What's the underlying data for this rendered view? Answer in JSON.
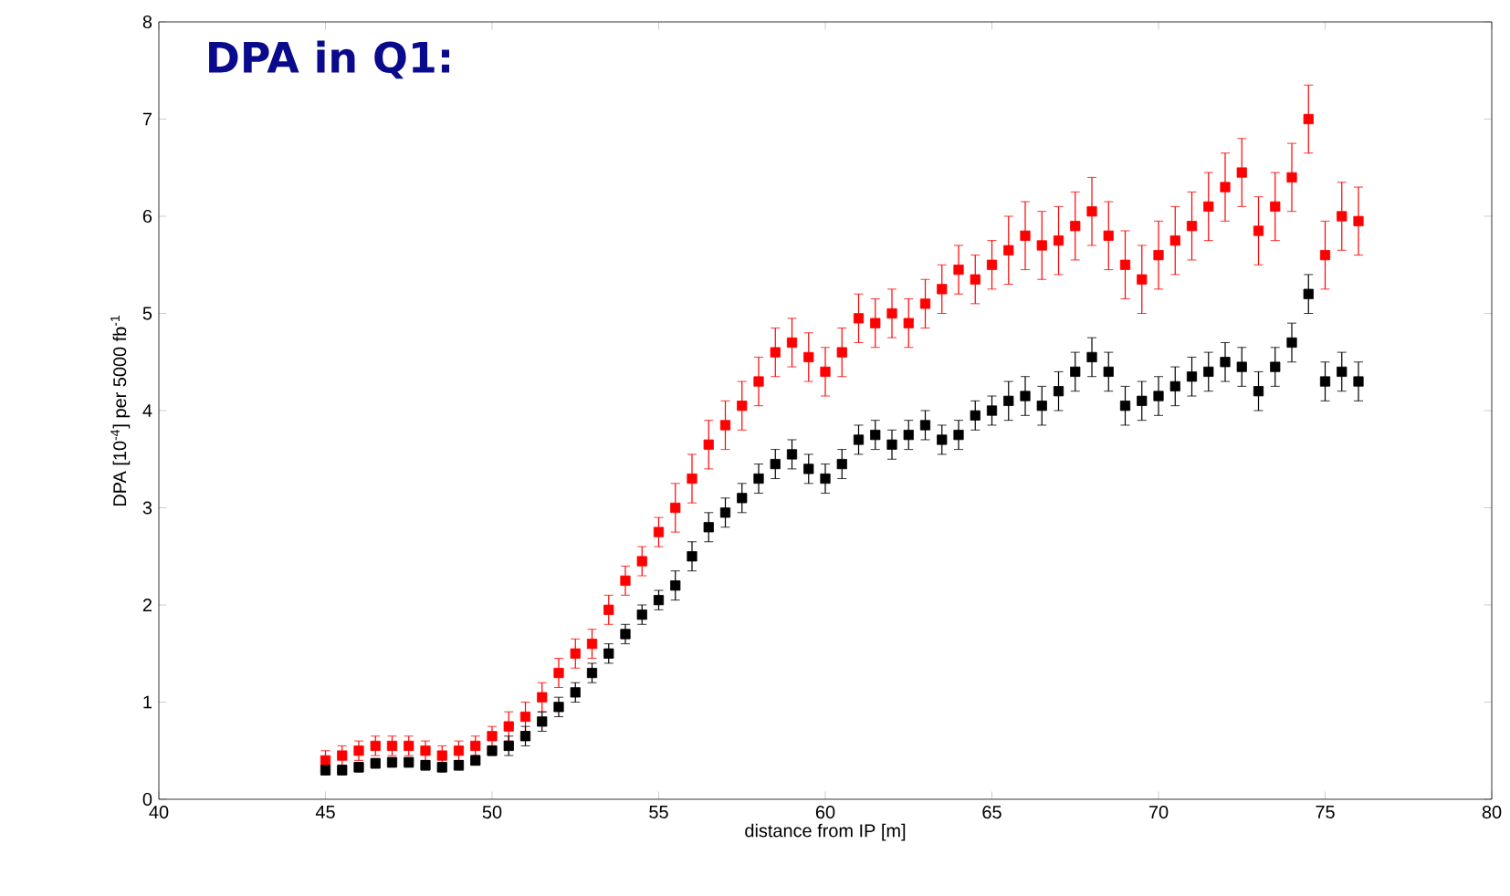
{
  "chart_data": {
    "type": "scatter",
    "title": "DPA in Q1:",
    "xlabel": "distance from IP [m]",
    "ylabel": "DPA [10$^{-4}$] per 5000 fb$^{-1}$",
    "xlim": [
      40,
      80
    ],
    "ylim": [
      0,
      8
    ],
    "xticks": [
      40,
      45,
      50,
      55,
      60,
      65,
      70,
      75,
      80
    ],
    "yticks": [
      0,
      1,
      2,
      3,
      4,
      5,
      6,
      7,
      8
    ],
    "marker": "square",
    "x": [
      45,
      45.5,
      46,
      46.5,
      47,
      47.5,
      48,
      48.5,
      49,
      49.5,
      50,
      50.5,
      51,
      51.5,
      52,
      52.5,
      53,
      53.5,
      54,
      54.5,
      55,
      55.5,
      56,
      56.5,
      57,
      57.5,
      58,
      58.5,
      59,
      59.5,
      60,
      60.5,
      61,
      61.5,
      62,
      62.5,
      63,
      63.5,
      64,
      64.5,
      65,
      65.5,
      66,
      66.5,
      67,
      67.5,
      68,
      68.5,
      69,
      69.5,
      70,
      70.5,
      71,
      71.5,
      72,
      72.5,
      73,
      73.5,
      74,
      74.5,
      75,
      75.5,
      76
    ],
    "series": [
      {
        "color": "#ff0000",
        "values": [
          0.4,
          0.45,
          0.5,
          0.55,
          0.55,
          0.55,
          0.5,
          0.45,
          0.5,
          0.55,
          0.65,
          0.75,
          0.85,
          1.05,
          1.3,
          1.5,
          1.6,
          1.95,
          2.25,
          2.45,
          2.75,
          3.0,
          3.3,
          3.65,
          3.85,
          4.05,
          4.3,
          4.6,
          4.7,
          4.55,
          4.4,
          4.6,
          4.95,
          4.9,
          5.0,
          4.9,
          5.1,
          5.25,
          5.45,
          5.35,
          5.5,
          5.65,
          5.8,
          5.7,
          5.75,
          5.9,
          6.05,
          5.8,
          5.5,
          5.35,
          5.6,
          5.75,
          5.9,
          6.1,
          6.3,
          6.45,
          5.85,
          6.1,
          6.4,
          7.0,
          5.6,
          6.0,
          5.95
        ],
        "errors": [
          0.1,
          0.1,
          0.1,
          0.1,
          0.1,
          0.1,
          0.1,
          0.1,
          0.1,
          0.1,
          0.1,
          0.15,
          0.15,
          0.15,
          0.15,
          0.15,
          0.15,
          0.15,
          0.15,
          0.15,
          0.15,
          0.25,
          0.25,
          0.25,
          0.25,
          0.25,
          0.25,
          0.25,
          0.25,
          0.25,
          0.25,
          0.25,
          0.25,
          0.25,
          0.25,
          0.25,
          0.25,
          0.25,
          0.25,
          0.25,
          0.25,
          0.35,
          0.35,
          0.35,
          0.35,
          0.35,
          0.35,
          0.35,
          0.35,
          0.35,
          0.35,
          0.35,
          0.35,
          0.35,
          0.35,
          0.35,
          0.35,
          0.35,
          0.35,
          0.35,
          0.35,
          0.35,
          0.35
        ]
      },
      {
        "color": "#000000",
        "values": [
          0.3,
          0.3,
          0.33,
          0.37,
          0.38,
          0.38,
          0.35,
          0.33,
          0.35,
          0.4,
          0.5,
          0.55,
          0.65,
          0.8,
          0.95,
          1.1,
          1.3,
          1.5,
          1.7,
          1.9,
          2.05,
          2.2,
          2.5,
          2.8,
          2.95,
          3.1,
          3.3,
          3.45,
          3.55,
          3.4,
          3.3,
          3.45,
          3.7,
          3.75,
          3.65,
          3.75,
          3.85,
          3.7,
          3.75,
          3.95,
          4.0,
          4.1,
          4.15,
          4.05,
          4.2,
          4.4,
          4.55,
          4.4,
          4.05,
          4.1,
          4.15,
          4.25,
          4.35,
          4.4,
          4.5,
          4.45,
          4.2,
          4.45,
          4.7,
          5.2,
          4.3,
          4.4,
          4.3
        ],
        "errors": [
          0.05,
          0.05,
          0.05,
          0.05,
          0.05,
          0.05,
          0.05,
          0.05,
          0.05,
          0.05,
          0.05,
          0.1,
          0.1,
          0.1,
          0.1,
          0.1,
          0.1,
          0.1,
          0.1,
          0.1,
          0.1,
          0.15,
          0.15,
          0.15,
          0.15,
          0.15,
          0.15,
          0.15,
          0.15,
          0.15,
          0.15,
          0.15,
          0.15,
          0.15,
          0.15,
          0.15,
          0.15,
          0.15,
          0.15,
          0.15,
          0.15,
          0.2,
          0.2,
          0.2,
          0.2,
          0.2,
          0.2,
          0.2,
          0.2,
          0.2,
          0.2,
          0.2,
          0.2,
          0.2,
          0.2,
          0.2,
          0.2,
          0.2,
          0.2,
          0.2,
          0.2,
          0.2,
          0.2
        ]
      }
    ]
  }
}
